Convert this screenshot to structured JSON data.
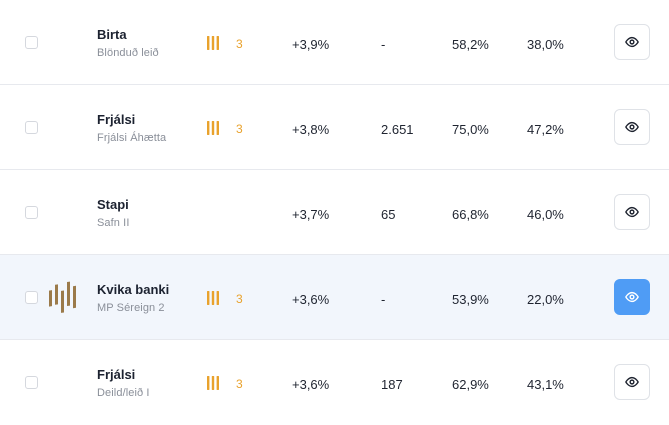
{
  "rows": [
    {
      "name": "Birta",
      "sub": "Blönduð leið",
      "risk": "3",
      "return": "+3,9%",
      "count": "-",
      "pct1": "58,2%",
      "pct2": "38,0%"
    },
    {
      "name": "Frjálsi",
      "sub": "Frjálsi Áhætta",
      "risk": "3",
      "return": "+3,8%",
      "count": "2.651",
      "pct1": "75,0%",
      "pct2": "47,2%"
    },
    {
      "name": "Stapi",
      "sub": "Safn II",
      "risk": "",
      "return": "+3,7%",
      "count": "65",
      "pct1": "66,8%",
      "pct2": "46,0%"
    },
    {
      "name": "Kvika banki",
      "sub": "MP Séreign 2",
      "risk": "3",
      "return": "+3,6%",
      "count": "-",
      "pct1": "53,9%",
      "pct2": "22,0%"
    },
    {
      "name": "Frjálsi",
      "sub": "Deild/leið I",
      "risk": "3",
      "return": "+3,6%",
      "count": "187",
      "pct1": "62,9%",
      "pct2": "43,1%"
    }
  ],
  "colors": {
    "risk": "#e9a22c",
    "active_button": "#4f9cf5",
    "highlight_row": "#f2f6fc",
    "kvika_logo": "#9b7a4a"
  },
  "icons": {
    "risk": "risk-bars-icon",
    "view": "eye-icon",
    "logo": "kvika-logo"
  }
}
